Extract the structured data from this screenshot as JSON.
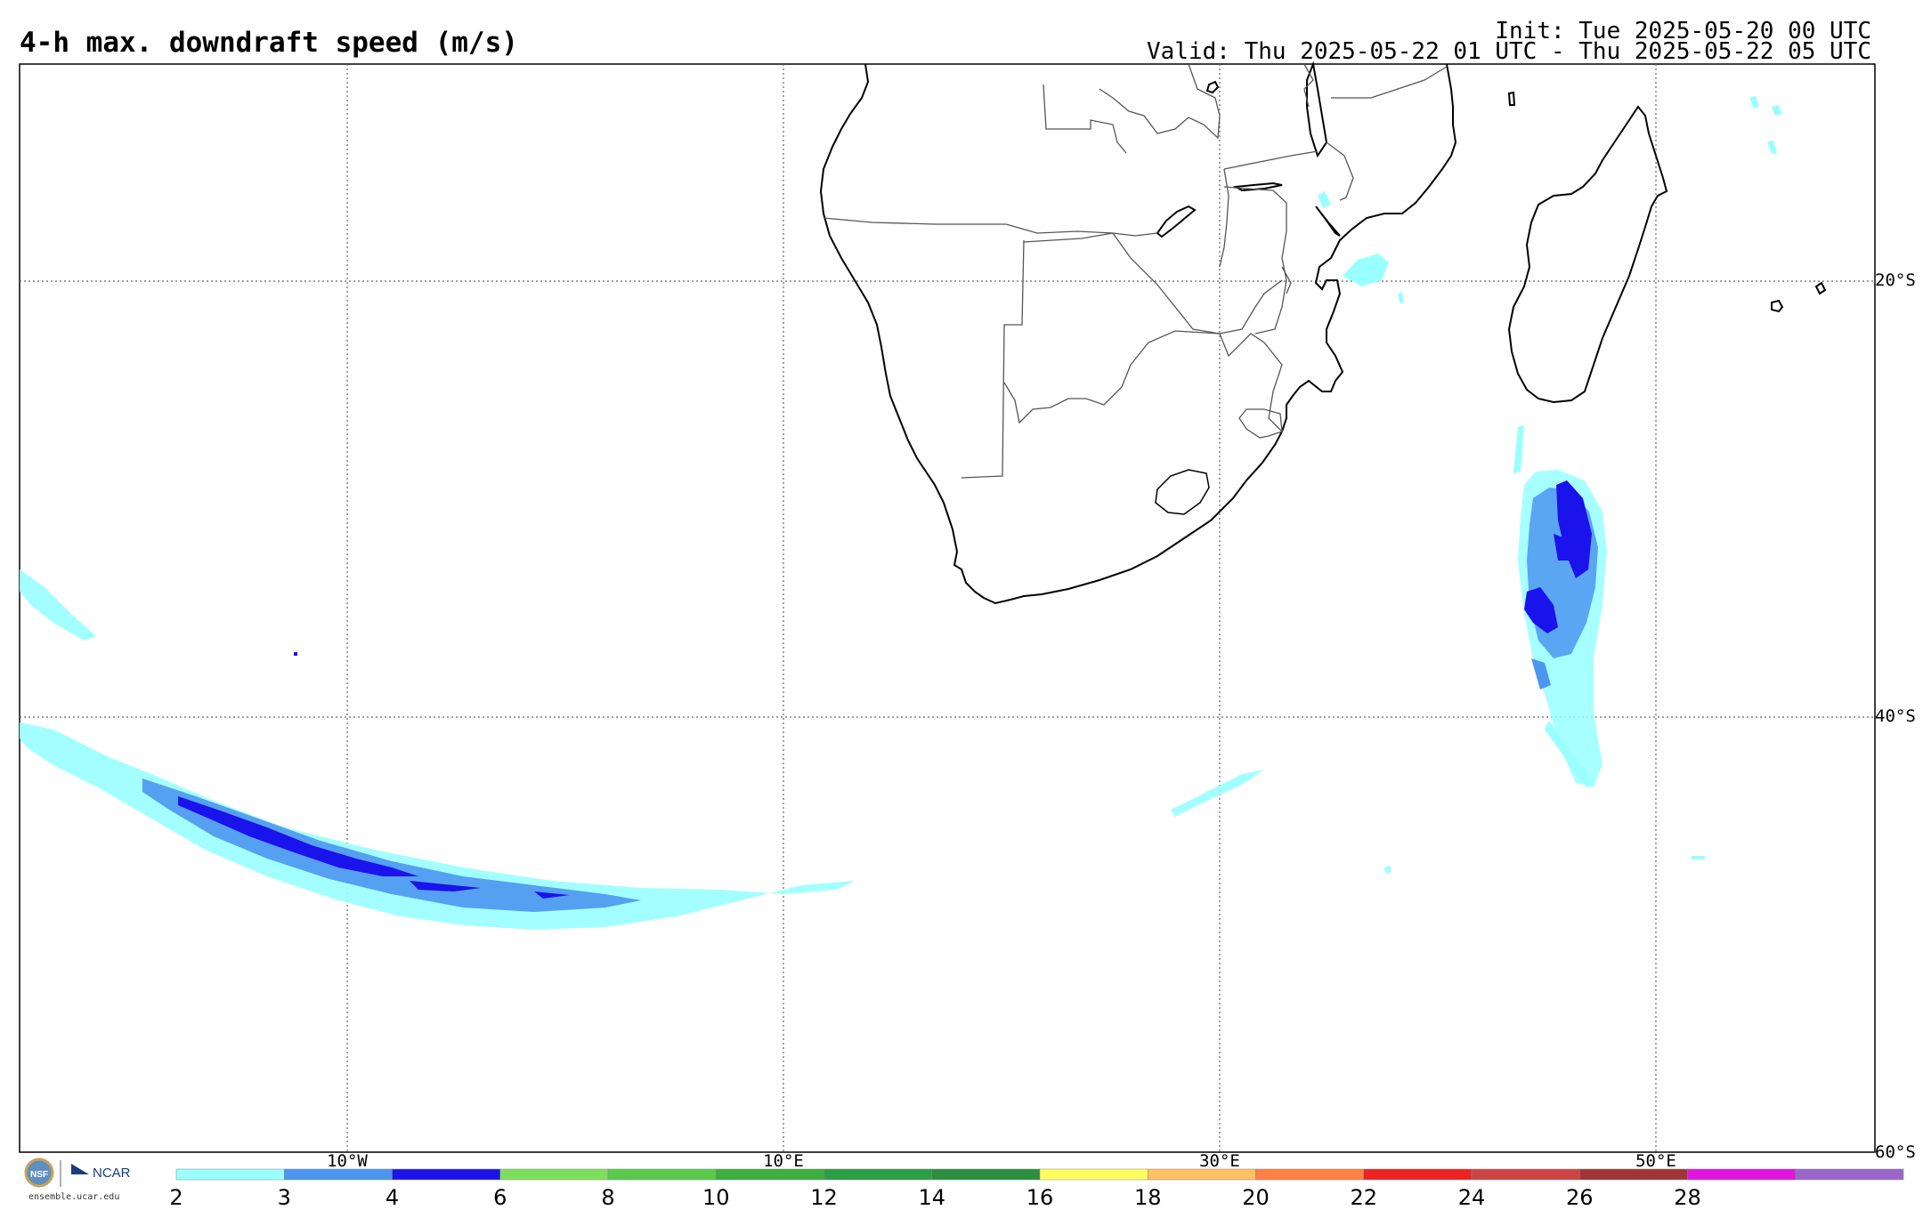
{
  "title": "4-h max. downdraft speed (m/s)",
  "init": "Init: Tue 2025-05-20 00 UTC",
  "valid": "Valid: Thu 2025-05-22 01 UTC - Thu 2025-05-22 05 UTC",
  "gridlines": {
    "latitudes": [
      {
        "value": -20,
        "label": "20°S"
      },
      {
        "value": -40,
        "label": "40°S"
      },
      {
        "value": -60,
        "label": "60°S"
      }
    ],
    "longitudes": [
      {
        "value": -10,
        "label": "10°W"
      },
      {
        "value": 10,
        "label": "10°E"
      },
      {
        "value": 30,
        "label": "30°E"
      },
      {
        "value": 50,
        "label": "50°E"
      }
    ]
  },
  "logo": {
    "org": "NCAR",
    "badge": "NSF",
    "url": "ensemble.ucar.edu"
  },
  "colorbar": {
    "levels": [
      2,
      3,
      4,
      6,
      8,
      10,
      12,
      14,
      16,
      18,
      20,
      22,
      24,
      26,
      28
    ],
    "labels": [
      "2",
      "3",
      "4",
      "6",
      "8",
      "10",
      "12",
      "14",
      "16",
      "18",
      "20",
      "22",
      "24",
      "26",
      "28"
    ],
    "colors": [
      "#99ffff",
      "#4c96f0",
      "#1a13eb",
      "#7de05c",
      "#59c94a",
      "#3caf3d",
      "#2a9e42",
      "#2b8f3e",
      "#ffff60",
      "#ffc060",
      "#ff8040",
      "#ee2222",
      "#cc4444",
      "#a03535",
      "#e015e0",
      "#9966cc"
    ]
  },
  "colors": {
    "light_cyan": "#99ffff",
    "medium_blue": "#4c96f0",
    "dark_blue": "#1a13eb",
    "coast": "#000000",
    "border": "#555555",
    "grid": "#666666"
  }
}
